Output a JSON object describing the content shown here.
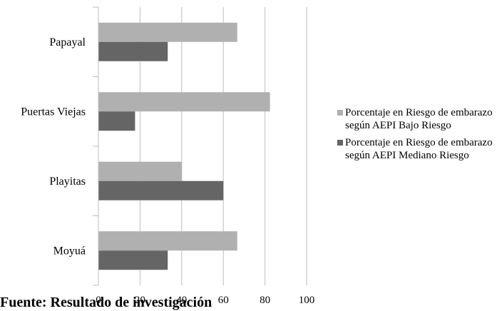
{
  "chart_data": {
    "type": "bar",
    "orientation": "horizontal",
    "categories": [
      "Moyuá",
      "Playitas",
      "Puertas Viejas",
      "Papayal"
    ],
    "series": [
      {
        "name": "Porcentaje en Riesgo de embarazo según AEPI  Bajo Riesgo",
        "color": "#b0b0b0",
        "values": [
          66.7,
          40,
          82.4,
          66.7
        ]
      },
      {
        "name": "Porcentaje en Riesgo de embarazo según AEPI Mediano Riesgo",
        "color": "#656565",
        "values": [
          33.3,
          60,
          17.6,
          33.3
        ]
      }
    ],
    "xlim": [
      0,
      100
    ],
    "xticks": [
      0,
      20,
      40,
      60,
      80,
      100
    ],
    "grid": "vertical",
    "legend_position": "right"
  },
  "legend": {
    "items": [
      {
        "label": "Porcentaje en Riesgo de embarazo según AEPI  Bajo Riesgo",
        "color": "#b0b0b0"
      },
      {
        "label": "Porcentaje en Riesgo de embarazo según AEPI Mediano Riesgo",
        "color": "#656565"
      }
    ]
  },
  "footer": {
    "text": "Fuente: Resultado de investigación"
  }
}
